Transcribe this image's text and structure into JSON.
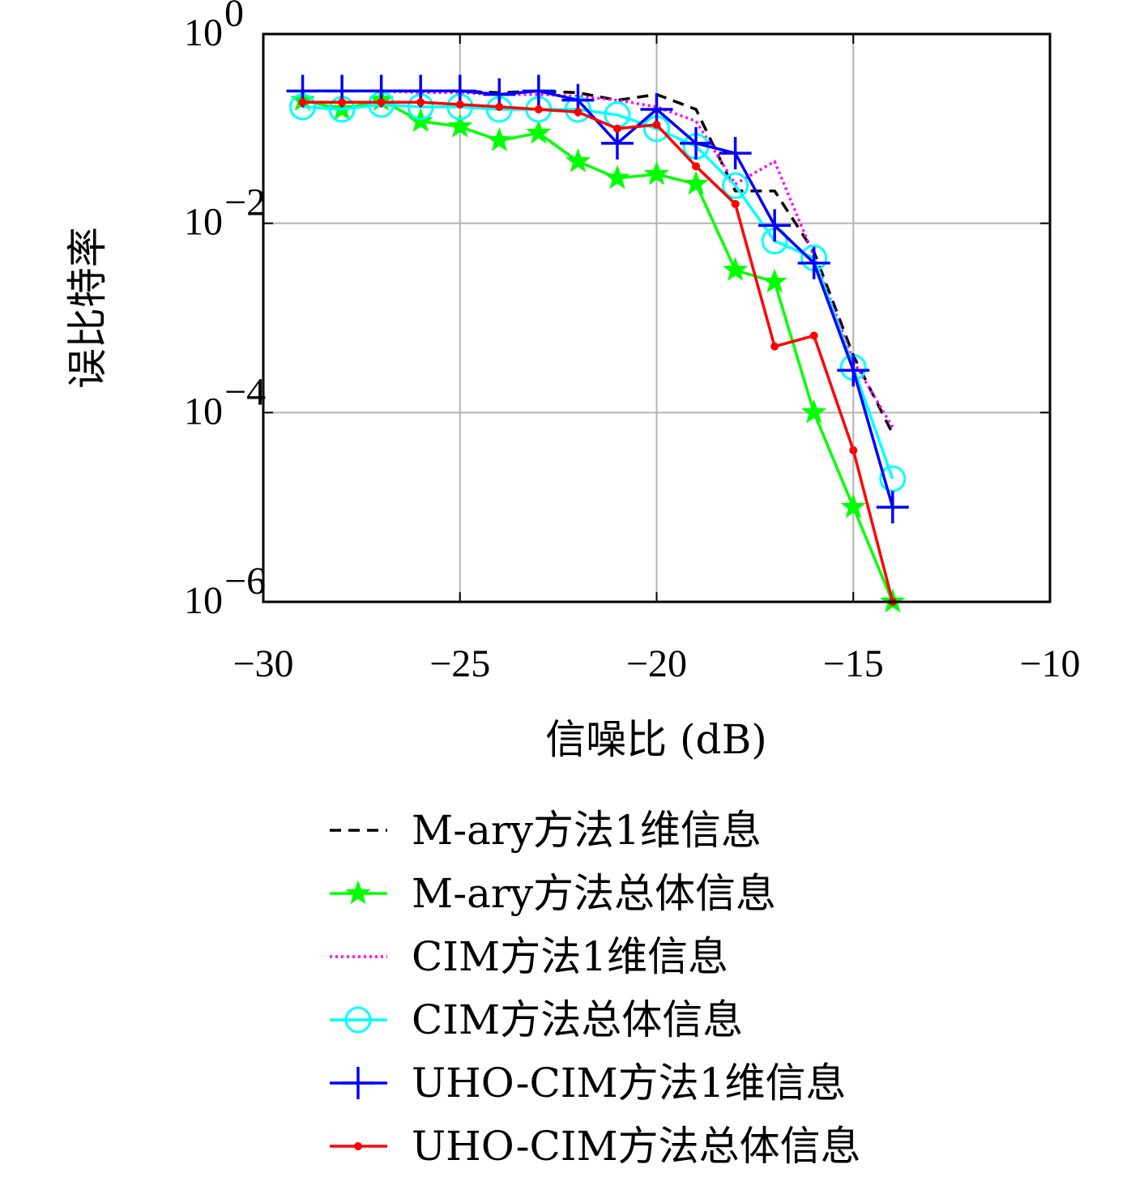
{
  "chart_data": {
    "type": "line",
    "y_scale": "log",
    "xlim": [
      -30,
      -10
    ],
    "ylim": [
      1e-06,
      1
    ],
    "grid": true,
    "xlabel": "信噪比 (dB)",
    "ylabel": "误比特率",
    "x_ticks": [
      -30,
      -25,
      -20,
      -15,
      -10
    ],
    "x_tick_labels": [
      "−30",
      "−25",
      "−20",
      "−15",
      "−10"
    ],
    "y_ticks": [
      {
        "value": 1,
        "base": "10",
        "exp": "0"
      },
      {
        "value": 0.01,
        "base": "10",
        "exp": "−2"
      },
      {
        "value": 0.0001,
        "base": "10",
        "exp": "−4"
      },
      {
        "value": 1e-06,
        "base": "10",
        "exp": "−6"
      }
    ],
    "legend_position": "bottom-center",
    "series": [
      {
        "name": "M-ary方法1维信息",
        "color": "#000000",
        "style": "dashed",
        "marker": "none",
        "x": [
          -29,
          -28,
          -27,
          -26,
          -25,
          -24,
          -23,
          -22,
          -21,
          -20,
          -19,
          -18,
          -17,
          -16,
          -15,
          -14
        ],
        "y": [
          0.25,
          0.25,
          0.25,
          0.25,
          0.25,
          0.24,
          0.25,
          0.24,
          0.2,
          0.23,
          0.16,
          0.022,
          0.022,
          0.005,
          0.0004,
          6e-05
        ]
      },
      {
        "name": "M-ary方法总体信息",
        "color": "#00ff00",
        "style": "solid",
        "marker": "star",
        "x": [
          -29,
          -28,
          -27,
          -26,
          -25,
          -24,
          -23,
          -22,
          -21,
          -20,
          -19,
          -18,
          -17,
          -16,
          -15,
          -14
        ],
        "y": [
          0.2,
          0.16,
          0.2,
          0.12,
          0.105,
          0.075,
          0.09,
          0.045,
          0.03,
          0.033,
          0.026,
          0.0032,
          0.0024,
          0.0001,
          1e-05,
          1e-06
        ]
      },
      {
        "name": "CIM方法1维信息",
        "color": "#ff00ff",
        "style": "dotted",
        "marker": "none",
        "x": [
          -29,
          -28,
          -27,
          -26,
          -25,
          -24,
          -23,
          -22,
          -21,
          -20,
          -19,
          -18,
          -17,
          -16,
          -15,
          -14
        ],
        "y": [
          0.25,
          0.25,
          0.25,
          0.24,
          0.24,
          0.23,
          0.23,
          0.22,
          0.2,
          0.17,
          0.12,
          0.026,
          0.045,
          0.0045,
          0.00035,
          7e-05
        ]
      },
      {
        "name": "CIM方法总体信息",
        "color": "#00ffff",
        "style": "solid",
        "marker": "circle",
        "x": [
          -29,
          -28,
          -27,
          -26,
          -25,
          -24,
          -23,
          -22,
          -21,
          -20,
          -19,
          -18,
          -17,
          -16,
          -15,
          -14
        ],
        "y": [
          0.17,
          0.16,
          0.18,
          0.17,
          0.17,
          0.16,
          0.16,
          0.16,
          0.14,
          0.1,
          0.065,
          0.025,
          0.0065,
          0.0043,
          0.0003,
          2e-05
        ]
      },
      {
        "name": "UHO-CIM方法1维信息",
        "color": "#0000ff",
        "style": "solid",
        "marker": "plus",
        "x": [
          -29,
          -28,
          -27,
          -26,
          -25,
          -24,
          -23,
          -22,
          -21,
          -20,
          -19,
          -18,
          -17,
          -16,
          -15,
          -14
        ],
        "y": [
          0.25,
          0.25,
          0.25,
          0.25,
          0.25,
          0.23,
          0.25,
          0.2,
          0.07,
          0.16,
          0.07,
          0.055,
          0.0095,
          0.0038,
          0.00028,
          1e-05
        ]
      },
      {
        "name": "UHO-CIM方法总体信息",
        "color": "#ff0000",
        "style": "solid",
        "marker": "dot",
        "x": [
          -29,
          -28,
          -27,
          -26,
          -25,
          -24,
          -23,
          -22,
          -21,
          -20,
          -19,
          -18,
          -17,
          -16,
          -15,
          -14
        ],
        "y": [
          0.19,
          0.19,
          0.19,
          0.19,
          0.18,
          0.17,
          0.16,
          0.15,
          0.1,
          0.11,
          0.04,
          0.016,
          0.0005,
          0.00065,
          4e-05,
          1e-06
        ]
      }
    ]
  }
}
